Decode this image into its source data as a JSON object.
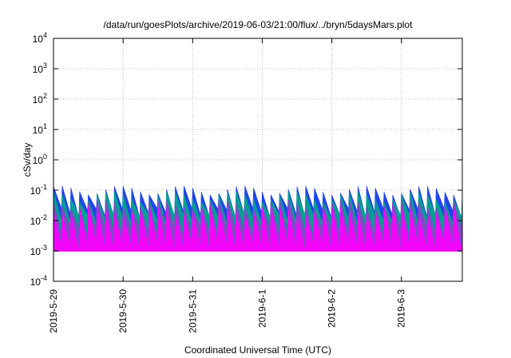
{
  "chart_data": {
    "type": "area",
    "title": "/data/run/goesPlots/archive/2019-06-03/21:00/flux/../bryn/5daysMars.plot",
    "xlabel": "Coordinated Universal Time (UTC)",
    "ylabel": "cSv/day",
    "y_scale": "log",
    "ylim": [
      0.0001,
      10000
    ],
    "xlim": [
      "2019-05-29 00:00",
      "2019-06-03 21:00"
    ],
    "x_ticks": [
      "2019-5-29",
      "2019-5-30",
      "2019-5-31",
      "2019-6-1",
      "2019-6-2",
      "2019-6-3"
    ],
    "y_ticks": [
      {
        "base": "10",
        "exp": "-4"
      },
      {
        "base": "10",
        "exp": "-3"
      },
      {
        "base": "10",
        "exp": "-2"
      },
      {
        "base": "10",
        "exp": "-1"
      },
      {
        "base": "10",
        "exp": "0"
      },
      {
        "base": "10",
        "exp": "1"
      },
      {
        "base": "10",
        "exp": "2"
      },
      {
        "base": "10",
        "exp": "3"
      },
      {
        "base": "10",
        "exp": "4"
      }
    ],
    "grid": true,
    "cycle_period_hours": 3,
    "series": [
      {
        "color": "#2244ee",
        "peak_range": [
          0.07,
          0.14
        ],
        "trough_range": [
          0.012,
          0.025
        ]
      },
      {
        "color": "#00aa88",
        "peak_range": [
          0.04,
          0.09
        ],
        "trough_range": [
          0.008,
          0.016
        ]
      },
      {
        "color": "#8844cc",
        "peak_range": [
          0.025,
          0.05
        ],
        "trough_range": [
          0.003,
          0.006
        ]
      },
      {
        "color": "#ff00ff",
        "peak_range": [
          0.015,
          0.03
        ],
        "trough_range": [
          0.001,
          0.0016
        ]
      }
    ]
  }
}
